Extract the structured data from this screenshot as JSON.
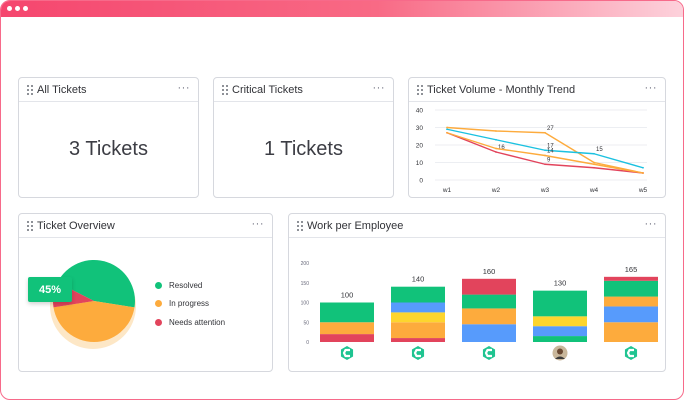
{
  "window": {
    "accent": "#f5466e"
  },
  "cards": {
    "all_tickets": {
      "title": "All Tickets",
      "value": "3 Tickets",
      "menu": "···"
    },
    "critical_tickets": {
      "title": "Critical Tickets",
      "value": "1 Tickets",
      "menu": "···"
    },
    "volume": {
      "title": "Ticket Volume - Monthly Trend",
      "menu": "···"
    },
    "overview": {
      "title": "Ticket Overview",
      "menu": "···"
    },
    "work": {
      "title": "Work per Employee",
      "menu": "···"
    }
  },
  "overview": {
    "percent_label": "45%",
    "legend": [
      {
        "label": "Resolved",
        "color": "#11c27a"
      },
      {
        "label": "In progress",
        "color": "#fdab3d"
      },
      {
        "label": "Needs attention",
        "color": "#e2445c"
      }
    ],
    "slices": [
      {
        "name": "Resolved",
        "value": 45,
        "color": "#11c27a"
      },
      {
        "name": "In progress",
        "value": 45,
        "color": "#fdab3d"
      },
      {
        "name": "Needs attention",
        "value": 10,
        "color": "#e2445c"
      }
    ]
  },
  "chart_data": [
    {
      "type": "line",
      "title": "Ticket Volume - Monthly Trend",
      "categories": [
        "w1",
        "w2",
        "w3",
        "w4",
        "w5"
      ],
      "ylim": [
        0,
        40
      ],
      "yticks": [
        0,
        10,
        20,
        30,
        40
      ],
      "grid": true,
      "series": [
        {
          "color": "#fdab3d",
          "values": [
            30,
            28,
            27,
            10,
            4
          ],
          "labels": [
            "",
            "",
            "27",
            "",
            ""
          ]
        },
        {
          "color": "#1bc1e0",
          "values": [
            29,
            23,
            17,
            15,
            7
          ],
          "labels": [
            "",
            "",
            "17",
            "15",
            ""
          ]
        },
        {
          "color": "#e2445c",
          "values": [
            27,
            16,
            9,
            7,
            4
          ],
          "labels": [
            "",
            "16",
            "9",
            "",
            ""
          ]
        },
        {
          "color": "#fdab3d",
          "values": [
            27,
            18,
            14,
            9,
            4
          ],
          "labels": [
            "",
            "",
            "14",
            "",
            ""
          ]
        }
      ]
    },
    {
      "type": "bar",
      "title": "Work per Employee",
      "stacked": true,
      "ylim": [
        0,
        200
      ],
      "yticks": [
        "0",
        "50",
        "100",
        "150",
        "200"
      ],
      "totals": [
        "100",
        "140",
        "160",
        "130",
        "165"
      ],
      "stacks": [
        [
          {
            "color": "#e2445c",
            "value": 20
          },
          {
            "color": "#fdab3d",
            "value": 30
          },
          {
            "color": "#11c27a",
            "value": 50
          }
        ],
        [
          {
            "color": "#e2445c",
            "value": 10
          },
          {
            "color": "#fdab3d",
            "value": 40
          },
          {
            "color": "#fdd52e",
            "value": 25
          },
          {
            "color": "#579bfc",
            "value": 25
          },
          {
            "color": "#11c27a",
            "value": 40
          }
        ],
        [
          {
            "color": "#579bfc",
            "value": 45
          },
          {
            "color": "#fdab3d",
            "value": 40
          },
          {
            "color": "#11c27a",
            "value": 35
          },
          {
            "color": "#e2445c",
            "value": 40
          }
        ],
        [
          {
            "color": "#11c27a",
            "value": 15
          },
          {
            "color": "#579bfc",
            "value": 25
          },
          {
            "color": "#fdd52e",
            "value": 25
          },
          {
            "color": "#11c27a",
            "value": 65
          }
        ],
        [
          {
            "color": "#fdab3d",
            "value": 50
          },
          {
            "color": "#579bfc",
            "value": 40
          },
          {
            "color": "#fdab3d",
            "value": 25
          },
          {
            "color": "#11c27a",
            "value": 40
          },
          {
            "color": "#e2445c",
            "value": 10
          }
        ]
      ],
      "avatars": [
        "logo-icon",
        "logo-icon",
        "logo-icon",
        "person-avatar",
        "logo-icon"
      ]
    }
  ]
}
